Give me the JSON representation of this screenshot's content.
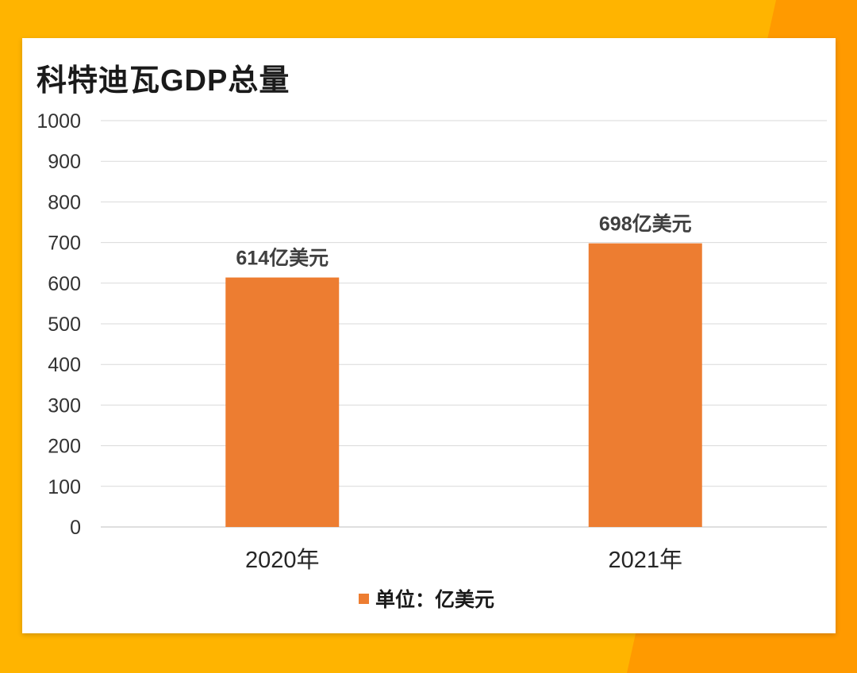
{
  "chart_data": {
    "type": "bar",
    "title": "科特迪瓦GDP总量",
    "categories": [
      "2020年",
      "2021年"
    ],
    "series": [
      {
        "name": "单位：亿美元",
        "values": [
          614,
          698
        ],
        "color": "#ED7D31"
      }
    ],
    "data_labels": [
      "614亿美元",
      "698亿美元"
    ],
    "yticks": [
      "0",
      "100",
      "200",
      "300",
      "400",
      "500",
      "600",
      "700",
      "800",
      "900",
      "1000"
    ],
    "ylim": [
      0,
      1000
    ],
    "xlabel": "",
    "ylabel": "",
    "grid": true,
    "legend": "bottom-center",
    "legend_label": "单位：亿美元"
  },
  "colors": {
    "background": "#FFB400",
    "accent": "#FF9A00",
    "card": "#FFFFFF",
    "bar": "#ED7D31",
    "grid": "#D9D9D9"
  }
}
